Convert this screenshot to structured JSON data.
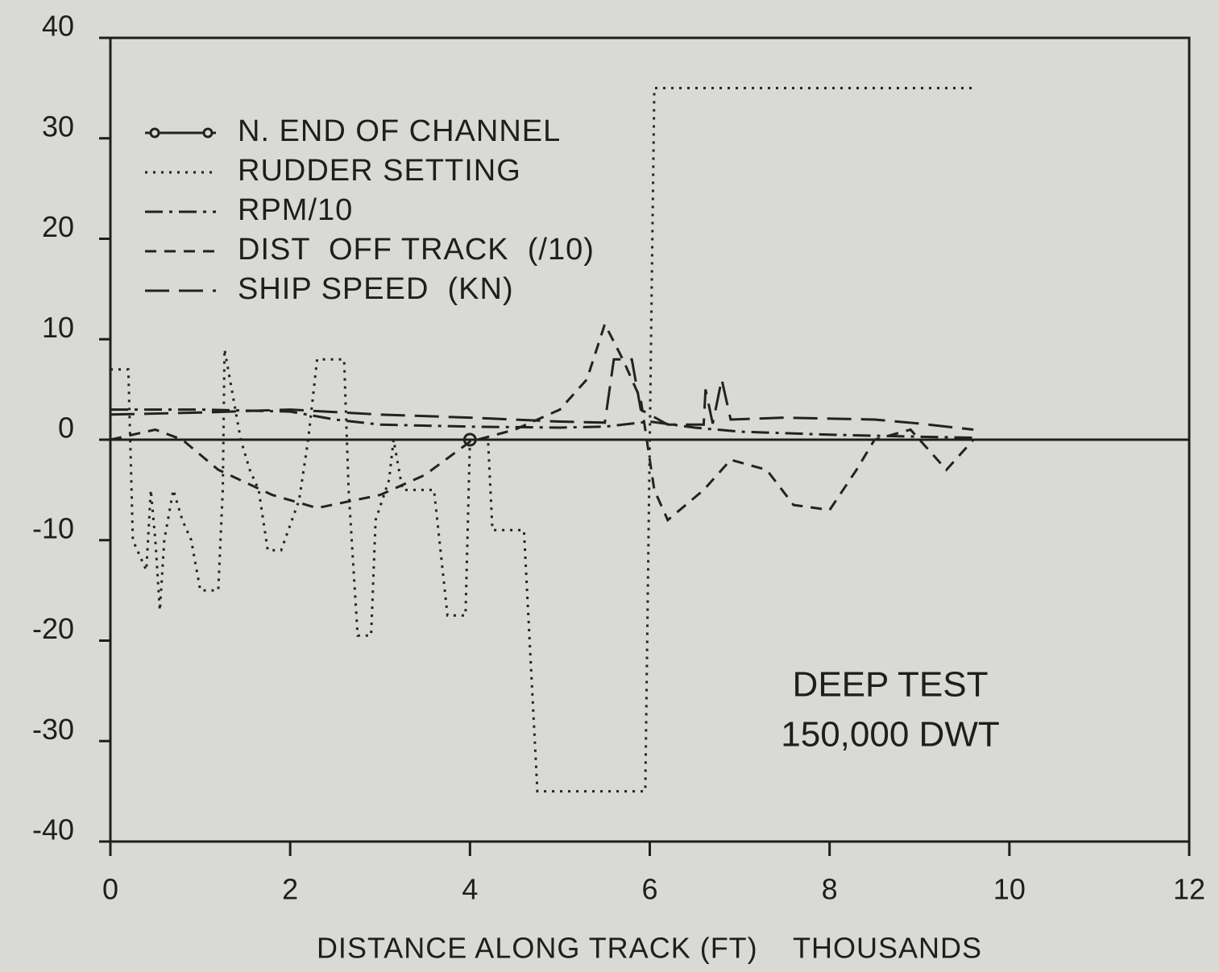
{
  "chart_data": {
    "type": "line",
    "xlabel": "DISTANCE ALONG TRACK (FT)    THOUSANDS",
    "annotations": [
      "DEEP TEST",
      "150,000 DWT"
    ],
    "xlim": [
      0,
      12
    ],
    "xticks": [
      0,
      2,
      4,
      6,
      8,
      10,
      12
    ],
    "ylim": [
      -40,
      40
    ],
    "yticks": [
      -40,
      -30,
      -20,
      -10,
      0,
      10,
      20,
      30,
      40
    ],
    "legend": "upper left",
    "series": [
      {
        "name": "N. END OF CHANNEL",
        "color": "#222222",
        "dash": "marker",
        "x": [
          4
        ],
        "values": [
          0
        ]
      },
      {
        "name": "RUDDER SETTING",
        "color": "#222222",
        "dash": "dotted",
        "x": [
          0,
          0.2,
          0.25,
          0.4,
          0.45,
          0.5,
          0.55,
          0.6,
          0.7,
          0.8,
          0.9,
          1.0,
          1.2,
          1.25,
          1.27,
          1.35,
          1.45,
          1.55,
          1.65,
          1.75,
          1.9,
          2.1,
          2.2,
          2.3,
          2.6,
          2.65,
          2.75,
          2.9,
          2.95,
          3.1,
          3.15,
          3.25,
          3.6,
          3.75,
          3.95,
          4.0,
          4.2,
          4.25,
          4.6,
          4.75,
          5.95,
          6.05,
          9.6
        ],
        "values": [
          7,
          7,
          -10,
          -13,
          -5,
          -10,
          -17,
          -10,
          -5,
          -8,
          -10,
          -15,
          -15,
          -5,
          9,
          5,
          0,
          -3,
          -5,
          -11,
          -11,
          -6,
          0,
          8,
          8,
          -5,
          -19.5,
          -19.5,
          -8,
          -4,
          0,
          -5,
          -5,
          -17.5,
          -17.5,
          0,
          0,
          -9,
          -9,
          -35,
          -35,
          35,
          35
        ]
      },
      {
        "name": "RPM/10",
        "color": "#222222",
        "dash": "dashdot",
        "x": [
          0,
          1,
          2,
          2.5,
          3,
          4,
          5,
          5.5,
          6,
          6.5,
          7,
          8,
          9,
          9.6
        ],
        "values": [
          3,
          3,
          2.8,
          2,
          1.5,
          1.3,
          1.2,
          1.3,
          1.8,
          1.2,
          0.8,
          0.5,
          0.3,
          0.2
        ]
      },
      {
        "name": "DIST  OFF TRACK  (/10)",
        "color": "#222222",
        "dash": "dashed",
        "x": [
          0,
          0.5,
          0.8,
          1.2,
          1.8,
          2.3,
          3,
          3.5,
          4,
          4.5,
          5,
          5.3,
          5.5,
          5.7,
          5.9,
          6.05,
          6.2,
          6.6,
          6.9,
          7.3,
          7.6,
          8,
          8.3,
          8.5,
          8.9,
          9.3,
          9.6
        ],
        "values": [
          0,
          1,
          0,
          -3,
          -5.5,
          -6.8,
          -5.5,
          -3.5,
          -0.2,
          1,
          3,
          6,
          11.5,
          8,
          4,
          -5,
          -8,
          -5,
          -2,
          -3,
          -6.5,
          -7,
          -3,
          0,
          1,
          -3,
          0
        ]
      },
      {
        "name": "SHIP SPEED  (KN)",
        "color": "#222222",
        "dash": "longdash",
        "x": [
          0,
          1,
          2,
          3,
          4,
          5,
          5.5,
          5.6,
          5.8,
          5.9,
          6.2,
          6.6,
          6.62,
          6.7,
          6.8,
          6.9,
          7.5,
          8.5,
          9,
          9.6
        ],
        "values": [
          2.5,
          2.7,
          3,
          2.5,
          2.2,
          1.8,
          1.7,
          8,
          8,
          3,
          1.5,
          1.5,
          5,
          1.6,
          6,
          2,
          2.2,
          2,
          1.6,
          1
        ]
      }
    ]
  }
}
